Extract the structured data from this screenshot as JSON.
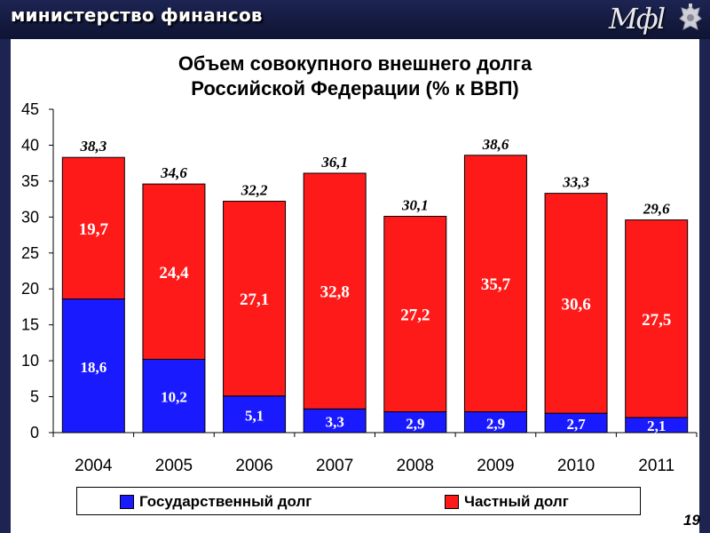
{
  "header": {
    "title": "министерство финансов",
    "logo": "Мфl"
  },
  "page_number": "19",
  "chart_data": {
    "type": "bar",
    "stacked": true,
    "title": "Объем совокупного внешнего долга Российской Федерации (% к ВВП)",
    "title_lines": [
      "Объем совокупного внешнего долга",
      "Российской Федерации (% к ВВП)"
    ],
    "categories": [
      "2004",
      "2005",
      "2006",
      "2007",
      "2008",
      "2009",
      "2010",
      "2011"
    ],
    "series": [
      {
        "name": "Государственный долг",
        "color": "#1a1aff",
        "values": [
          18.6,
          10.2,
          5.1,
          3.3,
          2.9,
          2.9,
          2.7,
          2.1
        ],
        "labels": [
          "18,6",
          "10,2",
          "5,1",
          "3,3",
          "2,9",
          "2,9",
          "2,7",
          "2,1"
        ]
      },
      {
        "name": "Частный долг",
        "color": "#ff1a1a",
        "values": [
          19.7,
          24.4,
          27.1,
          32.8,
          27.2,
          35.7,
          30.6,
          27.5
        ],
        "labels": [
          "19,7",
          "24,4",
          "27,1",
          "32,8",
          "27,2",
          "35,7",
          "30,6",
          "27,5"
        ]
      }
    ],
    "totals": [
      38.3,
      34.6,
      32.2,
      36.1,
      30.1,
      38.6,
      33.3,
      29.6
    ],
    "total_labels": [
      "38,3",
      "34,6",
      "32,2",
      "36,1",
      "30,1",
      "38,6",
      "33,3",
      "29,6"
    ],
    "ylim": [
      0,
      45
    ],
    "yticks": [
      0,
      5,
      10,
      15,
      20,
      25,
      30,
      35,
      40,
      45
    ],
    "ytick_labels": [
      "0",
      "5",
      "10",
      "15",
      "20",
      "25",
      "30",
      "35",
      "40",
      "45"
    ],
    "grid": false,
    "legend_position": "bottom",
    "xlabel": "",
    "ylabel": ""
  }
}
